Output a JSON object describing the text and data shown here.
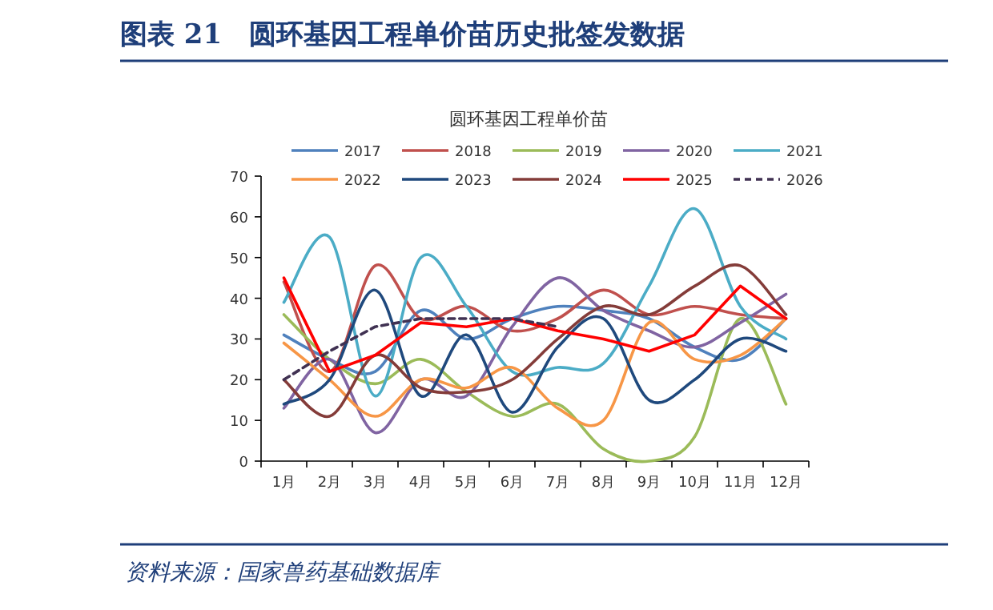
{
  "chart_data": {
    "type": "line",
    "title": "图表 21　圆环基因工程单价苗历史批签发数据",
    "subtitle": "圆环基因工程单价苗",
    "categories": [
      "1月",
      "2月",
      "3月",
      "4月",
      "5月",
      "6月",
      "7月",
      "8月",
      "9月",
      "10月",
      "11月",
      "12月"
    ],
    "series": [
      {
        "name": "2017",
        "color": "#4f81bd",
        "values": [
          31,
          25,
          22,
          37,
          30,
          35,
          38,
          37,
          35,
          28,
          25,
          35
        ]
      },
      {
        "name": "2018",
        "color": "#c0504d",
        "values": [
          44,
          22,
          48,
          35,
          38,
          32,
          35,
          42,
          36,
          38,
          36,
          35
        ]
      },
      {
        "name": "2019",
        "color": "#9bbb59",
        "values": [
          36,
          25,
          19,
          25,
          17,
          11,
          14,
          3,
          0,
          6,
          35,
          14
        ]
      },
      {
        "name": "2020",
        "color": "#8064a2",
        "values": [
          13,
          25,
          7,
          20,
          16,
          33,
          45,
          37,
          32,
          28,
          34,
          41
        ]
      },
      {
        "name": "2021",
        "color": "#4bacc6",
        "values": [
          39,
          55,
          16,
          50,
          38,
          22,
          23,
          24,
          43,
          62,
          38,
          30
        ]
      },
      {
        "name": "2022",
        "color": "#f79646",
        "values": [
          29,
          20,
          11,
          20,
          18,
          23,
          13,
          10,
          34,
          25,
          26,
          35
        ]
      },
      {
        "name": "2023",
        "color": "#1f497d",
        "values": [
          14,
          20,
          42,
          16,
          31,
          12,
          28,
          35,
          15,
          20,
          30,
          27
        ]
      },
      {
        "name": "2024",
        "color": "#843c39",
        "values": [
          20,
          11,
          26,
          18,
          17,
          20,
          30,
          38,
          36,
          43,
          48,
          36
        ]
      },
      {
        "name": "2025",
        "color": "#ff0000",
        "line_style": "solid",
        "values": [
          45,
          22,
          26,
          34,
          33,
          35,
          32,
          30,
          27,
          31,
          43,
          35
        ]
      },
      {
        "name": "2026",
        "color": "#403152",
        "line_style": "dashed",
        "values": [
          20,
          27,
          33,
          35,
          35,
          35,
          33,
          null,
          null,
          null,
          null,
          null
        ]
      }
    ],
    "ylim": [
      0,
      70
    ],
    "yticks": [
      0,
      10,
      20,
      30,
      40,
      50,
      60,
      70
    ],
    "grid": false,
    "legend": "top",
    "marker": "none",
    "annotations": [
      "资料来源：国家兽药基础数据库"
    ]
  }
}
